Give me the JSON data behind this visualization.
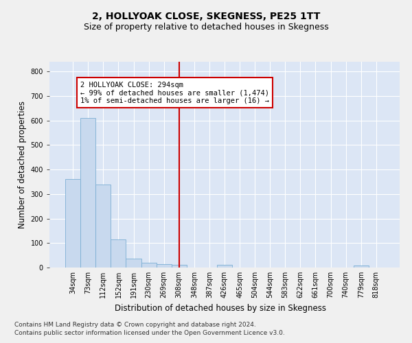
{
  "title": "2, HOLLYOAK CLOSE, SKEGNESS, PE25 1TT",
  "subtitle": "Size of property relative to detached houses in Skegness",
  "xlabel": "Distribution of detached houses by size in Skegness",
  "ylabel": "Number of detached properties",
  "bar_labels": [
    "34sqm",
    "73sqm",
    "112sqm",
    "152sqm",
    "191sqm",
    "230sqm",
    "269sqm",
    "308sqm",
    "348sqm",
    "387sqm",
    "426sqm",
    "465sqm",
    "504sqm",
    "544sqm",
    "583sqm",
    "622sqm",
    "661sqm",
    "700sqm",
    "740sqm",
    "779sqm",
    "818sqm"
  ],
  "bar_values": [
    360,
    611,
    338,
    115,
    36,
    20,
    15,
    10,
    0,
    0,
    10,
    0,
    0,
    0,
    0,
    0,
    0,
    0,
    0,
    8,
    0
  ],
  "bar_color": "#c8d9ee",
  "bar_edge_color": "#7bafd4",
  "vline_x": 7.0,
  "vline_color": "#cc0000",
  "annotation_text": "2 HOLLYOAK CLOSE: 294sqm\n← 99% of detached houses are smaller (1,474)\n1% of semi-detached houses are larger (16) →",
  "annotation_box_color": "#ffffff",
  "annotation_box_edge_color": "#cc0000",
  "ylim": [
    0,
    840
  ],
  "yticks": [
    0,
    100,
    200,
    300,
    400,
    500,
    600,
    700,
    800
  ],
  "background_color": "#dce6f5",
  "grid_color": "#ffffff",
  "fig_background": "#f0f0f0",
  "footer_line1": "Contains HM Land Registry data © Crown copyright and database right 2024.",
  "footer_line2": "Contains public sector information licensed under the Open Government Licence v3.0.",
  "title_fontsize": 10,
  "subtitle_fontsize": 9,
  "axis_label_fontsize": 8.5,
  "tick_fontsize": 7,
  "annotation_fontsize": 7.5,
  "footer_fontsize": 6.5
}
